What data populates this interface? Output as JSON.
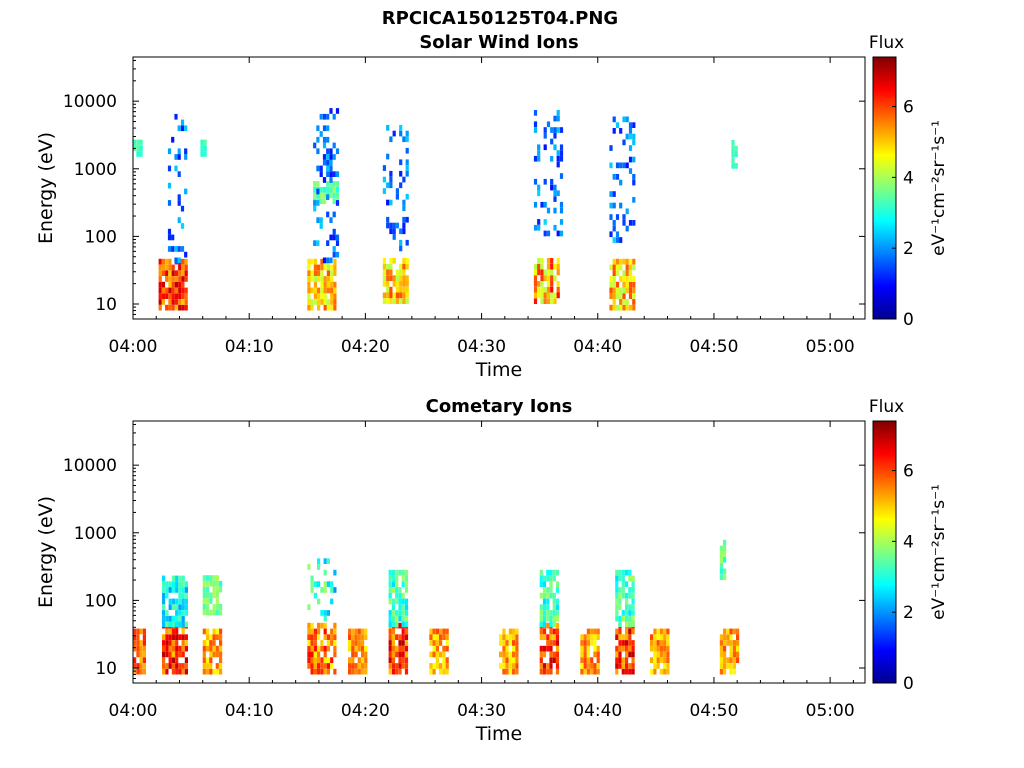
{
  "figure": {
    "title": "RPCICA150125T04.PNG"
  },
  "chart_data": [
    {
      "type": "heatmap",
      "title": "Solar Wind Ions",
      "xlabel": "Time",
      "ylabel": "Energy (eV)",
      "x_ticks": [
        "04:00",
        "04:10",
        "04:20",
        "04:30",
        "04:40",
        "04:50",
        "05:00"
      ],
      "x_range_minutes": [
        0,
        63
      ],
      "y_scale": "log",
      "y_ticks": [
        "10",
        "100",
        "1000",
        "10000"
      ],
      "y_range": [
        6,
        45000
      ],
      "grid": false,
      "colorbar": {
        "label": "Flux",
        "unit": "eV⁻¹cm⁻²sr⁻¹s⁻¹",
        "range": [
          0,
          7.4
        ],
        "ticks": [
          "0",
          "2",
          "4",
          "6"
        ],
        "colormap": "jet"
      },
      "clusters": [
        {
          "t": [
            2.2,
            4.6
          ],
          "e": [
            8,
            40
          ],
          "z": [
            5,
            7
          ]
        },
        {
          "t": [
            3.0,
            4.6
          ],
          "e": [
            40,
            6000
          ],
          "z": [
            1,
            2.5
          ]
        },
        {
          "t": [
            0.0,
            0.6
          ],
          "e": [
            1500,
            2500
          ],
          "z": [
            3,
            3.5
          ]
        },
        {
          "t": [
            5.8,
            6.3
          ],
          "e": [
            1500,
            2500
          ],
          "z": [
            3,
            3.5
          ]
        },
        {
          "t": [
            15.0,
            17.5
          ],
          "e": [
            8,
            40
          ],
          "z": [
            4,
            6
          ]
        },
        {
          "t": [
            15.5,
            17.5
          ],
          "e": [
            300,
            600
          ],
          "z": [
            3,
            4
          ]
        },
        {
          "t": [
            15.5,
            17.5
          ],
          "e": [
            40,
            7000
          ],
          "z": [
            1,
            2.5
          ]
        },
        {
          "t": [
            21.5,
            23.5
          ],
          "e": [
            10,
            40
          ],
          "z": [
            4,
            6
          ]
        },
        {
          "t": [
            21.5,
            23.5
          ],
          "e": [
            60,
            4000
          ],
          "z": [
            1,
            2.5
          ]
        },
        {
          "t": [
            34.5,
            36.5
          ],
          "e": [
            10,
            40
          ],
          "z": [
            4,
            6.5
          ]
        },
        {
          "t": [
            34.5,
            37.0
          ],
          "e": [
            100,
            8000
          ],
          "z": [
            1,
            2.5
          ]
        },
        {
          "t": [
            41.0,
            43.0
          ],
          "e": [
            8,
            40
          ],
          "z": [
            4,
            6
          ]
        },
        {
          "t": [
            41.0,
            43.0
          ],
          "e": [
            80,
            5000
          ],
          "z": [
            1,
            2.5
          ]
        },
        {
          "t": [
            51.5,
            52.0
          ],
          "e": [
            1000,
            2200
          ],
          "z": [
            3,
            3.5
          ]
        }
      ]
    },
    {
      "type": "heatmap",
      "title": "Cometary Ions",
      "xlabel": "Time",
      "ylabel": "Energy (eV)",
      "x_ticks": [
        "04:00",
        "04:10",
        "04:20",
        "04:30",
        "04:40",
        "04:50",
        "05:00"
      ],
      "x_range_minutes": [
        0,
        63
      ],
      "y_scale": "log",
      "y_ticks": [
        "10",
        "100",
        "1000",
        "10000"
      ],
      "y_range": [
        6,
        45000
      ],
      "grid": false,
      "colorbar": {
        "label": "Flux",
        "unit": "eV⁻¹cm⁻²sr⁻¹s⁻¹",
        "range": [
          0,
          7.4
        ],
        "ticks": [
          "0",
          "2",
          "4",
          "6"
        ],
        "colormap": "jet"
      },
      "clusters": [
        {
          "t": [
            0.0,
            1.0
          ],
          "e": [
            8,
            35
          ],
          "z": [
            5,
            6.5
          ]
        },
        {
          "t": [
            2.5,
            4.5
          ],
          "e": [
            8,
            40
          ],
          "z": [
            5,
            7
          ]
        },
        {
          "t": [
            2.5,
            4.5
          ],
          "e": [
            40,
            200
          ],
          "z": [
            2,
            3.5
          ]
        },
        {
          "t": [
            6.0,
            7.5
          ],
          "e": [
            8,
            35
          ],
          "z": [
            4.5,
            6
          ]
        },
        {
          "t": [
            6.0,
            7.5
          ],
          "e": [
            60,
            200
          ],
          "z": [
            3,
            4
          ]
        },
        {
          "t": [
            15.0,
            17.5
          ],
          "e": [
            8,
            40
          ],
          "z": [
            4.5,
            6.5
          ]
        },
        {
          "t": [
            15.0,
            17.5
          ],
          "e": [
            40,
            400
          ],
          "z": [
            2,
            4
          ]
        },
        {
          "t": [
            18.5,
            20.0
          ],
          "e": [
            8,
            35
          ],
          "z": [
            4.5,
            6
          ]
        },
        {
          "t": [
            22.0,
            23.5
          ],
          "e": [
            8,
            40
          ],
          "z": [
            5,
            7
          ]
        },
        {
          "t": [
            22.0,
            23.5
          ],
          "e": [
            40,
            250
          ],
          "z": [
            2.5,
            4
          ]
        },
        {
          "t": [
            25.5,
            27.0
          ],
          "e": [
            8,
            35
          ],
          "z": [
            4.5,
            6
          ]
        },
        {
          "t": [
            31.5,
            33.0
          ],
          "e": [
            8,
            35
          ],
          "z": [
            4.5,
            6
          ]
        },
        {
          "t": [
            35.0,
            36.5
          ],
          "e": [
            8,
            40
          ],
          "z": [
            5,
            7
          ]
        },
        {
          "t": [
            35.0,
            36.5
          ],
          "e": [
            40,
            250
          ],
          "z": [
            2.5,
            4
          ]
        },
        {
          "t": [
            38.5,
            40.0
          ],
          "e": [
            8,
            35
          ],
          "z": [
            4.5,
            6
          ]
        },
        {
          "t": [
            41.5,
            43.0
          ],
          "e": [
            8,
            40
          ],
          "z": [
            5,
            7
          ]
        },
        {
          "t": [
            41.5,
            43.0
          ],
          "e": [
            40,
            250
          ],
          "z": [
            2.5,
            4
          ]
        },
        {
          "t": [
            44.5,
            46.0
          ],
          "e": [
            8,
            35
          ],
          "z": [
            4.5,
            6
          ]
        },
        {
          "t": [
            50.5,
            52.0
          ],
          "e": [
            8,
            35
          ],
          "z": [
            4.5,
            6
          ]
        },
        {
          "t": [
            50.5,
            51.0
          ],
          "e": [
            200,
            700
          ],
          "z": [
            3,
            4
          ]
        }
      ]
    }
  ]
}
